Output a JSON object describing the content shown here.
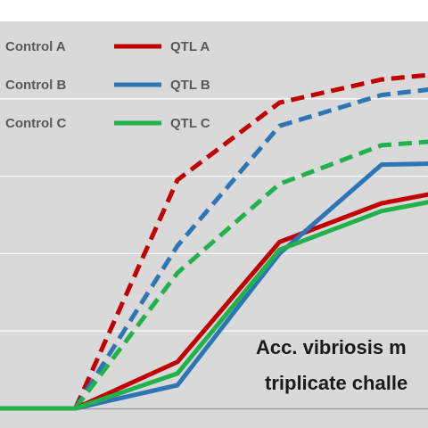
{
  "chart_data": {
    "type": "line",
    "title": "",
    "xlabel": "",
    "ylabel": "",
    "x": [
      0,
      1,
      2,
      3,
      4,
      5,
      6
    ],
    "xlim": [
      0,
      6
    ],
    "ylim": [
      0,
      100
    ],
    "grid": true,
    "legend_placement": "top-left",
    "annotation": {
      "line1": "Acc. vibriosis m",
      "line2": "triplicate challe"
    },
    "series": [
      {
        "name": "Control A",
        "style": "dashed",
        "color": "#c00000",
        "values": [
          0,
          0,
          59,
          79,
          85,
          87.5,
          95
        ]
      },
      {
        "name": "Control B",
        "style": "dashed",
        "color": "#2e75b6",
        "values": [
          0,
          0,
          42,
          73,
          81,
          84,
          93
        ]
      },
      {
        "name": "Control C",
        "style": "dashed",
        "color": "#21b24b",
        "values": [
          0,
          0,
          35,
          58,
          68,
          70,
          75
        ]
      },
      {
        "name": "QTL A",
        "style": "solid",
        "color": "#c00000",
        "values": [
          0,
          0,
          12,
          43,
          53,
          58,
          63
        ]
      },
      {
        "name": "QTL B",
        "style": "solid",
        "color": "#2e75b6",
        "values": [
          0,
          0,
          6,
          40,
          63,
          63.5,
          64
        ]
      },
      {
        "name": "QTL C",
        "style": "solid",
        "color": "#21b24b",
        "values": [
          0,
          0,
          9,
          41,
          51,
          56,
          58
        ]
      }
    ],
    "legend_layout": [
      [
        "Control A",
        "QTL A"
      ],
      [
        "Control B",
        "QTL B"
      ],
      [
        "Control C",
        "QTL C"
      ]
    ]
  },
  "colors": {
    "plot_background": "#d9d9d9",
    "gridline": "#ffffff",
    "axis": "#9e9e9e"
  }
}
